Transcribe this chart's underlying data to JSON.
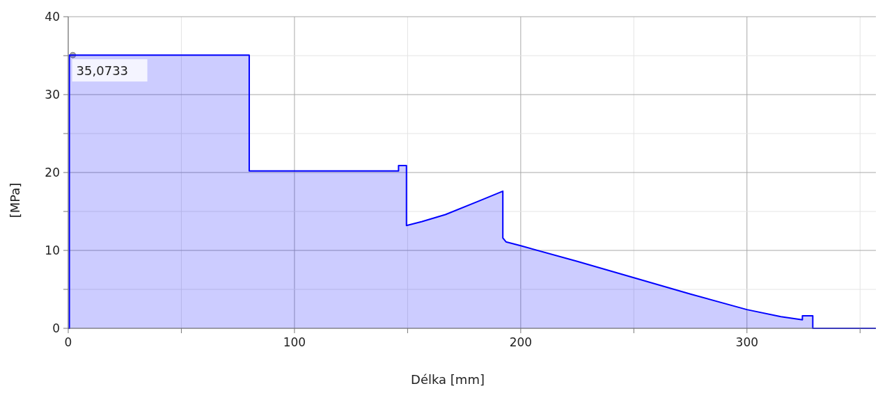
{
  "chart_data": {
    "type": "area",
    "xlabel": "Délka [mm]",
    "ylabel": "[MPa]",
    "xlim": [
      0,
      357
    ],
    "ylim": [
      0,
      40
    ],
    "xticks": [
      0,
      {
        "value": 50,
        "label": null
      },
      100,
      {
        "value": 150,
        "label": null
      },
      200,
      {
        "value": 250,
        "label": null
      },
      300,
      {
        "value": 350,
        "label": null
      }
    ],
    "yticks": [
      0,
      {
        "value": 5,
        "label": null
      },
      10,
      {
        "value": 15,
        "label": null
      },
      20,
      {
        "value": 25,
        "label": null
      },
      30,
      {
        "value": 35,
        "label": null
      },
      40
    ],
    "grid": true,
    "annotations": [
      {
        "text": "35,0733",
        "x": 0.5,
        "y": 35.0733
      }
    ],
    "series": [
      {
        "color": "#0000ff",
        "x": [
          0,
          0.5,
          0.5,
          80,
          80,
          146,
          146,
          149.5,
          149.5,
          156.4,
          166.7,
          182,
          192.1,
          192.1,
          193.5,
          200,
          225,
          250,
          275,
          300,
          315,
          324.5,
          324.5,
          329.1,
          329.1,
          357
        ],
        "values": [
          0,
          0,
          35.0733,
          35.0733,
          20.2,
          20.2,
          20.9,
          20.9,
          13.2,
          13.7,
          14.6,
          16.4,
          17.6,
          11.6,
          11.1,
          10.6,
          8.6,
          6.5,
          4.4,
          2.4,
          1.5,
          1.1,
          1.6,
          1.6,
          0,
          0
        ]
      }
    ]
  }
}
